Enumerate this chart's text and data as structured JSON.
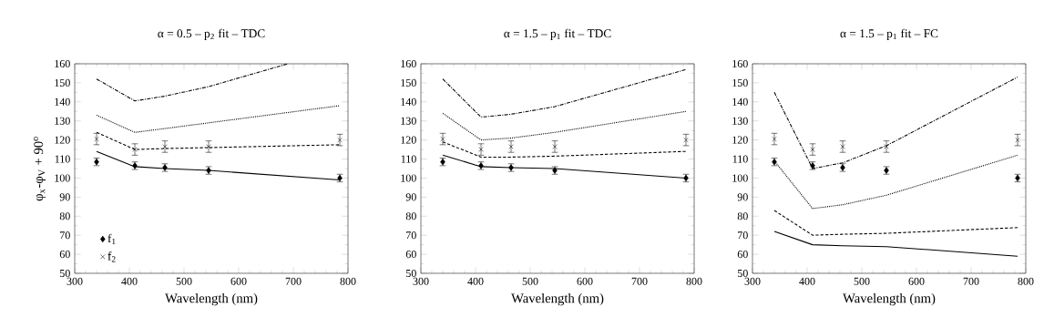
{
  "chart_data": [
    {
      "type": "line",
      "title": "α = 0.5 – p$_{2}$ fit – TDC",
      "xlabel": "Wavelength (nm)",
      "ylabel": "φ$_{x}$-φ$_{V}$ + 90$^{o}$",
      "xlim": [
        300,
        800
      ],
      "ylim": [
        50,
        160
      ],
      "xticks": [
        300,
        400,
        500,
        600,
        700,
        800
      ],
      "yticks": [
        50,
        60,
        70,
        80,
        90,
        100,
        110,
        120,
        130,
        140,
        150,
        160
      ],
      "legend": "bottom left",
      "x": [
        340,
        410,
        465,
        545,
        785
      ],
      "series": [
        {
          "name": "f$_{1}$",
          "type": "scatter",
          "marker": "diamond",
          "color": "#000000",
          "values": [
            108.5,
            106.5,
            105.5,
            104,
            100
          ],
          "errors": [
            2,
            2,
            2,
            2,
            2
          ]
        },
        {
          "name": "f$_{2}$",
          "type": "scatter",
          "marker": "cross",
          "color": "#000000",
          "values": [
            120.5,
            115,
            116.5,
            116.5,
            120
          ],
          "errors": [
            3,
            3,
            3,
            3,
            3
          ]
        },
        {
          "line_style": "solid",
          "color": "#000000",
          "values": [
            114,
            106,
            105,
            104,
            99
          ]
        },
        {
          "line_style": "dashed",
          "color": "#000000",
          "values": [
            124,
            115,
            115.5,
            116,
            117.5
          ]
        },
        {
          "line_style": "dotted",
          "color": "#000000",
          "values": [
            133,
            124,
            126,
            129,
            138
          ]
        },
        {
          "line_style": "dashdot",
          "color": "#000000",
          "x": [
            340,
            410,
            465,
            545,
            690
          ],
          "values": [
            152,
            140.5,
            143,
            148,
            160
          ]
        }
      ]
    },
    {
      "type": "line",
      "title": "α = 1.5 – p$_{1}$ fit – TDC",
      "xlabel": "Wavelength (nm)",
      "xlim": [
        300,
        800
      ],
      "ylim": [
        50,
        160
      ],
      "xticks": [
        300,
        400,
        500,
        600,
        700,
        800
      ],
      "yticks": [
        50,
        60,
        70,
        80,
        90,
        100,
        110,
        120,
        130,
        140,
        150,
        160
      ],
      "x": [
        340,
        410,
        465,
        545,
        785
      ],
      "series": [
        {
          "type": "scatter",
          "marker": "diamond",
          "color": "#000000",
          "values": [
            108.5,
            106.5,
            105.5,
            104,
            100
          ],
          "errors": [
            2,
            2,
            2,
            2,
            2
          ]
        },
        {
          "type": "scatter",
          "marker": "cross",
          "color": "#000000",
          "values": [
            120.5,
            115,
            116.5,
            116.5,
            120
          ],
          "errors": [
            3,
            3,
            3,
            3,
            3
          ]
        },
        {
          "line_style": "solid",
          "color": "#000000",
          "values": [
            112,
            106,
            105.5,
            105,
            100
          ]
        },
        {
          "line_style": "dashed",
          "color": "#000000",
          "values": [
            119,
            111,
            111,
            111.5,
            114
          ]
        },
        {
          "line_style": "dotted",
          "color": "#000000",
          "values": [
            134,
            120,
            121,
            124,
            135
          ]
        },
        {
          "line_style": "dashdot",
          "color": "#000000",
          "values": [
            152,
            132,
            133.5,
            137.5,
            157
          ]
        }
      ]
    },
    {
      "type": "line",
      "title": "α = 1.5 – p$_{1}$ fit – FC",
      "xlabel": "Wavelength (nm)",
      "xlim": [
        300,
        800
      ],
      "ylim": [
        50,
        160
      ],
      "xticks": [
        300,
        400,
        500,
        600,
        700,
        800
      ],
      "yticks": [
        50,
        60,
        70,
        80,
        90,
        100,
        110,
        120,
        130,
        140,
        150,
        160
      ],
      "x": [
        340,
        410,
        465,
        545,
        785
      ],
      "series": [
        {
          "type": "scatter",
          "marker": "diamond",
          "color": "#000000",
          "values": [
            108.5,
            106.5,
            105.5,
            104,
            100
          ],
          "errors": [
            2,
            2,
            2,
            2,
            2
          ]
        },
        {
          "type": "scatter",
          "marker": "cross",
          "color": "#000000",
          "values": [
            120.5,
            115,
            116.5,
            116.5,
            120
          ],
          "errors": [
            3,
            3,
            3,
            3,
            3
          ]
        },
        {
          "line_style": "solid",
          "color": "#000000",
          "values": [
            72,
            65,
            64.5,
            64,
            59
          ]
        },
        {
          "line_style": "dashed",
          "color": "#000000",
          "values": [
            83,
            70,
            70.5,
            71,
            74
          ]
        },
        {
          "line_style": "dotted",
          "color": "#000000",
          "values": [
            109,
            84,
            86,
            91,
            112
          ]
        },
        {
          "line_style": "dashdot",
          "color": "#000000",
          "values": [
            145,
            105,
            108,
            117,
            153
          ]
        }
      ]
    }
  ]
}
